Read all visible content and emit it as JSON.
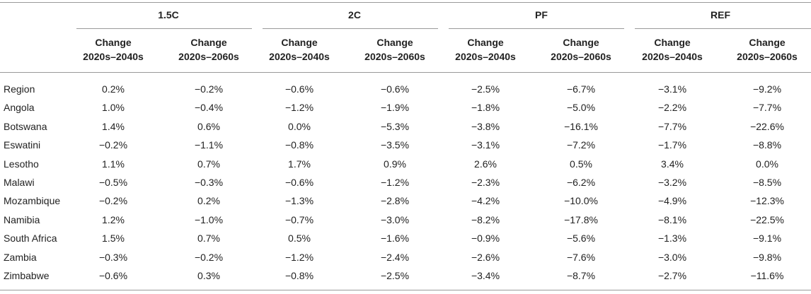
{
  "table": {
    "groups": [
      "1.5C",
      "2C",
      "PF",
      "REF"
    ],
    "subheaders": [
      {
        "line1": "Change",
        "line2": "2020s–2040s"
      },
      {
        "line1": "Change",
        "line2": "2020s–2060s"
      }
    ],
    "rows": [
      {
        "label": "Region",
        "values": [
          "0.2%",
          "−0.2%",
          "−0.6%",
          "−0.6%",
          "−2.5%",
          "−6.7%",
          "−3.1%",
          "−9.2%"
        ]
      },
      {
        "label": "Angola",
        "values": [
          "1.0%",
          "−0.4%",
          "−1.2%",
          "−1.9%",
          "−1.8%",
          "−5.0%",
          "−2.2%",
          "−7.7%"
        ]
      },
      {
        "label": "Botswana",
        "values": [
          "1.4%",
          "0.6%",
          "0.0%",
          "−5.3%",
          "−3.8%",
          "−16.1%",
          "−7.7%",
          "−22.6%"
        ]
      },
      {
        "label": "Eswatini",
        "values": [
          "−0.2%",
          "−1.1%",
          "−0.8%",
          "−3.5%",
          "−3.1%",
          "−7.2%",
          "−1.7%",
          "−8.8%"
        ]
      },
      {
        "label": "Lesotho",
        "values": [
          "1.1%",
          "0.7%",
          "1.7%",
          "0.9%",
          "2.6%",
          "0.5%",
          "3.4%",
          "0.0%"
        ]
      },
      {
        "label": "Malawi",
        "values": [
          "−0.5%",
          "−0.3%",
          "−0.6%",
          "−1.2%",
          "−2.3%",
          "−6.2%",
          "−3.2%",
          "−8.5%"
        ]
      },
      {
        "label": "Mozambique",
        "values": [
          "−0.2%",
          "0.2%",
          "−1.3%",
          "−2.8%",
          "−4.2%",
          "−10.0%",
          "−4.9%",
          "−12.3%"
        ]
      },
      {
        "label": "Namibia",
        "values": [
          "1.2%",
          "−1.0%",
          "−0.7%",
          "−3.0%",
          "−8.2%",
          "−17.8%",
          "−8.1%",
          "−22.5%"
        ]
      },
      {
        "label": "South Africa",
        "values": [
          "1.5%",
          "0.7%",
          "0.5%",
          "−1.6%",
          "−0.9%",
          "−5.6%",
          "−1.3%",
          "−9.1%"
        ]
      },
      {
        "label": "Zambia",
        "values": [
          "−0.3%",
          "−0.2%",
          "−1.2%",
          "−2.4%",
          "−2.6%",
          "−7.6%",
          "−3.0%",
          "−9.8%"
        ]
      },
      {
        "label": "Zimbabwe",
        "values": [
          "−0.6%",
          "0.3%",
          "−0.8%",
          "−2.5%",
          "−3.4%",
          "−8.7%",
          "−2.7%",
          "−11.6%"
        ]
      }
    ]
  }
}
